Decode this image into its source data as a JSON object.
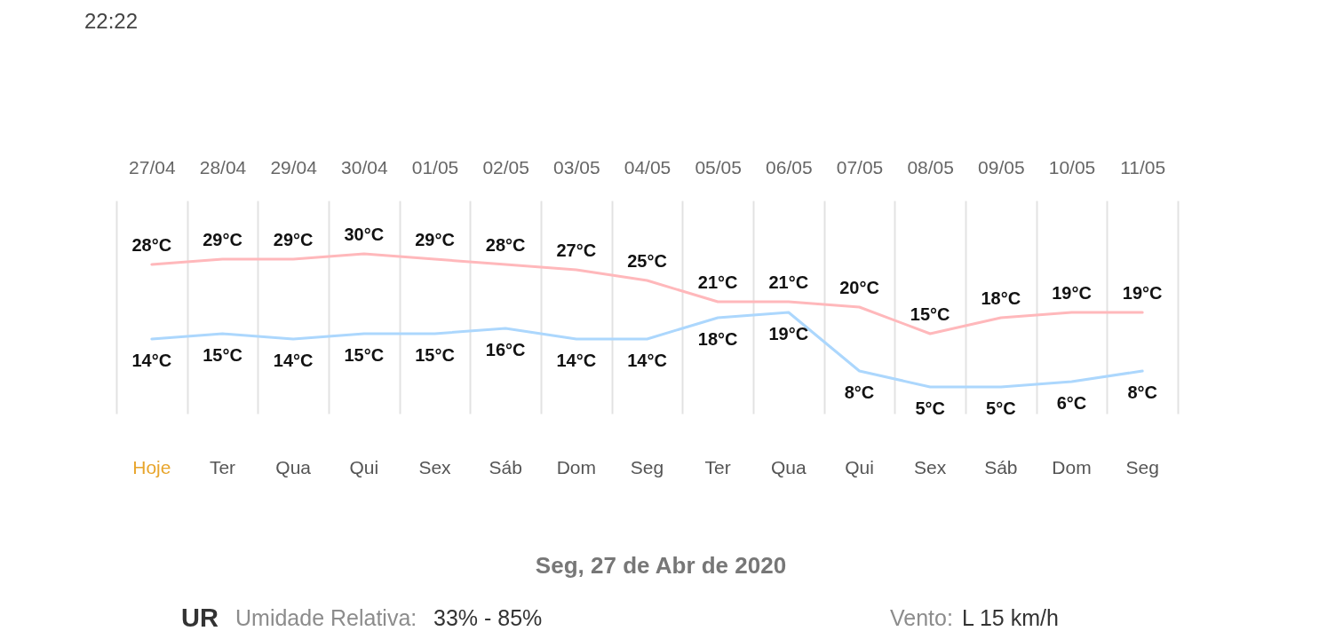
{
  "chart_data": {
    "type": "line",
    "categories": [
      "27/04",
      "28/04",
      "29/04",
      "30/04",
      "01/05",
      "02/05",
      "03/05",
      "04/05",
      "05/05",
      "06/05",
      "07/05",
      "08/05",
      "09/05",
      "10/05",
      "11/05"
    ],
    "series": [
      {
        "color": "#ffb8bb",
        "values": [
          28,
          29,
          29,
          30,
          29,
          28,
          27,
          25,
          21,
          21,
          20,
          15,
          18,
          19,
          19
        ],
        "value_labels": [
          "28°C",
          "29°C",
          "29°C",
          "30°C",
          "29°C",
          "28°C",
          "27°C",
          "25°C",
          "21°C",
          "21°C",
          "20°C",
          "15°C",
          "18°C",
          "19°C",
          "19°C"
        ]
      },
      {
        "color": "#acd7fd",
        "values": [
          14,
          15,
          14,
          15,
          15,
          16,
          14,
          14,
          18,
          19,
          8,
          5,
          5,
          6,
          8
        ],
        "value_labels": [
          "14°C",
          "15°C",
          "14°C",
          "15°C",
          "15°C",
          "16°C",
          "14°C",
          "14°C",
          "18°C",
          "19°C",
          "8°C",
          "5°C",
          "5°C",
          "6°C",
          "8°C"
        ]
      }
    ],
    "grid": "x",
    "line_style": "solid",
    "annotations": [
      "22:22",
      "Hoje",
      "Ter",
      "Qua",
      "Qui",
      "Sex",
      "Sáb",
      "Dom",
      "Seg",
      "Ter",
      "Qua",
      "Qui",
      "Sex",
      "Sáb",
      "Dom",
      "Seg",
      "Seg, 27 de Abr de 2020",
      "UR",
      "Umidade Relativa:",
      "33% - 85%",
      "Vento:",
      "L 15 km/h"
    ]
  }
}
